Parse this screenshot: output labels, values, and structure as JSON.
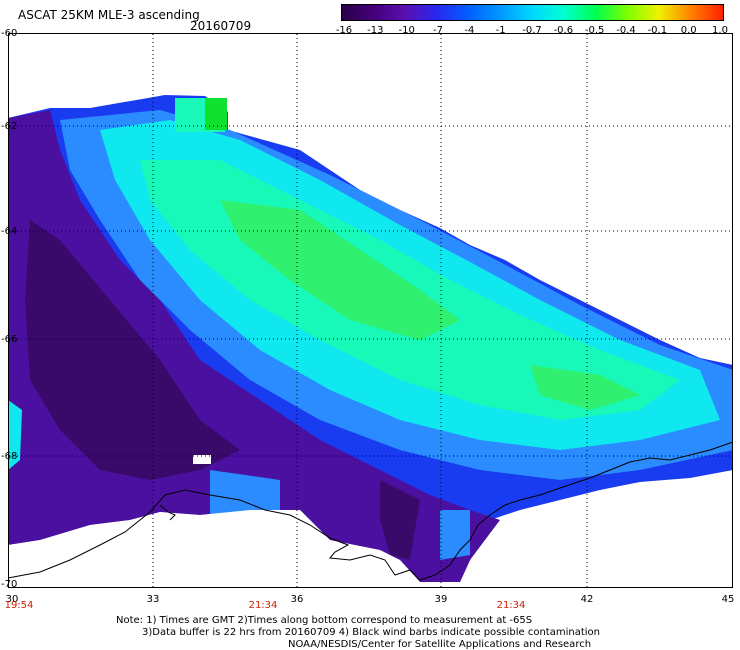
{
  "header": {
    "title": "ASCAT 25KM MLE-3 ascending",
    "date": "20160709"
  },
  "colorbar": {
    "tick_labels": [
      "-16",
      "-13",
      "-10",
      "-7",
      "-4",
      "-1",
      "-0.7",
      "-0.6",
      "-0.5",
      "-0.4",
      "-0.1",
      "0.0",
      "1.0"
    ],
    "colors": [
      "#2a0048",
      "#45007a",
      "#5a10b0",
      "#2828f0",
      "#0060ff",
      "#0098ff",
      "#00d8ff",
      "#00ffd0",
      "#00ff50",
      "#80ff00",
      "#f0f000",
      "#ff8000",
      "#ff2000"
    ]
  },
  "map": {
    "lat_labels": [
      "-60",
      "-62",
      "-64",
      "-66",
      "-68",
      "-70"
    ],
    "lon_labels": [
      "30",
      "33",
      "36",
      "39",
      "42",
      "45"
    ],
    "time_labels": [
      "19:54",
      "21:34",
      "21:34"
    ],
    "colors": {
      "deep_purple": "#3a0a6a",
      "purple": "#4b10a0",
      "blue": "#1a3cf0",
      "light_blue": "#2a8cff",
      "cyan": "#10e8f0",
      "aqua_green": "#18f8b8",
      "green": "#30f070",
      "bright_green": "#10e030",
      "coastline": "#000000",
      "grid": "#000000"
    }
  },
  "notes": {
    "line1": "Note: 1) Times are GMT 2)Times along bottom correspond to measurement at -65S",
    "line2": "3)Data buffer is 22 hrs from 20160709 4) Black wind barbs indicate possible contamination",
    "line3": "NOAA/NESDIS/Center for Satellite Applications and Research"
  }
}
